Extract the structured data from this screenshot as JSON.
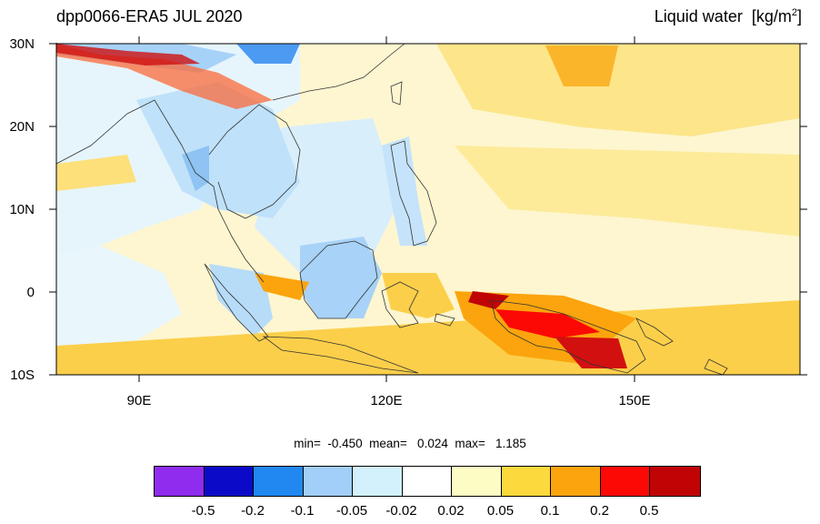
{
  "title_left": "dpp0066-ERA5 JUL 2020",
  "title_right": "Liquid water",
  "title_right_units": "[kg/m",
  "title_right_units_sup": "2",
  "title_right_units_close": "]",
  "stats": "min=  -0.450  mean=   0.024  max=   1.185",
  "y_axis_labels": [
    "30N",
    "20N",
    "10N",
    "0",
    "10S"
  ],
  "x_axis_labels": [
    "90E",
    "120E",
    "150E"
  ],
  "colorbar": {
    "colors": [
      "#8f2ced",
      "#0a0ac8",
      "#2188f2",
      "#a2cefa",
      "#d2f1fd",
      "#ffffff",
      "#fdfcc4",
      "#fcd93c",
      "#fba40d",
      "#fb0905",
      "#c00406"
    ],
    "labels": [
      "-0.5",
      "-0.2",
      "-0.1",
      "-0.05",
      "-0.02",
      "0.02",
      "0.05",
      "0.1",
      "0.2",
      "0.5"
    ]
  }
}
